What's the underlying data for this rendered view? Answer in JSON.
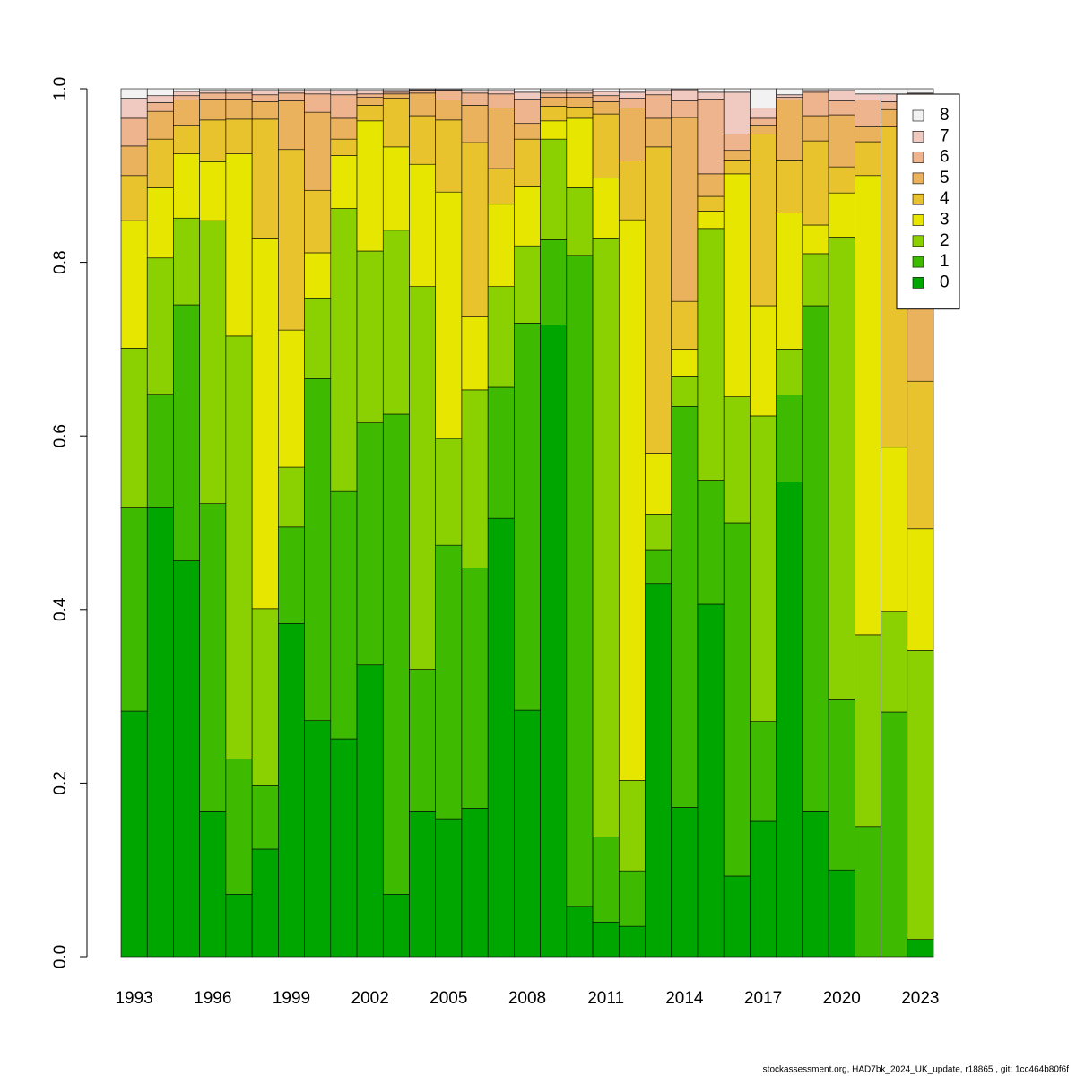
{
  "chart_data": {
    "type": "stacked-bar",
    "categories": [
      "1993",
      null,
      null,
      "1996",
      null,
      null,
      "1999",
      null,
      null,
      "2002",
      null,
      null,
      "2005",
      null,
      null,
      "2008",
      null,
      null,
      "2011",
      null,
      null,
      "2014",
      null,
      null,
      "2017",
      null,
      null,
      "2020",
      null,
      null,
      "2023"
    ],
    "series": [
      {
        "name": "0",
        "color": "#00A600",
        "values": [
          0.283,
          0.518,
          0.456,
          0.167,
          0.072,
          0.124,
          0.384,
          0.272,
          0.251,
          0.336,
          0.072,
          0.167,
          0.159,
          0.171,
          0.505,
          0.284,
          0.728,
          0.058,
          0.04,
          0.035,
          0.43,
          0.172,
          0.406,
          0.093,
          0.156,
          0.547,
          0.167,
          0.1,
          0,
          0,
          0.02
        ]
      },
      {
        "name": "1",
        "color": "#3EBB00",
        "values": [
          0.235,
          0.13,
          0.295,
          0.355,
          0.156,
          0.073,
          0.111,
          0.394,
          0.285,
          0.279,
          0.553,
          0.164,
          0.315,
          0.277,
          0.151,
          0.446,
          0.098,
          0.75,
          0.098,
          0.064,
          0.039,
          0.462,
          0.143,
          0.407,
          0.115,
          0.1,
          0.583,
          0.196,
          0.15,
          0.282,
          0
        ]
      },
      {
        "name": "2",
        "color": "#8BD000",
        "values": [
          0.183,
          0.157,
          0.1,
          0.326,
          0.487,
          0.204,
          0.069,
          0.093,
          0.326,
          0.198,
          0.212,
          0.441,
          0.123,
          0.205,
          0.116,
          0.089,
          0.116,
          0.078,
          0.69,
          0.104,
          0.041,
          0.035,
          0.29,
          0.145,
          0.352,
          0.053,
          0.06,
          0.533,
          0.221,
          0.116,
          0.333
        ]
      },
      {
        "name": "3",
        "color": "#E6E600",
        "values": [
          0.147,
          0.081,
          0.074,
          0.068,
          0.21,
          0.427,
          0.158,
          0.052,
          0.061,
          0.15,
          0.096,
          0.141,
          0.284,
          0.085,
          0.095,
          0.069,
          0.021,
          0.08,
          0.069,
          0.646,
          0.07,
          0.031,
          0.02,
          0.257,
          0.127,
          0.157,
          0.033,
          0.051,
          0.529,
          0.189,
          0.14
        ]
      },
      {
        "name": "4",
        "color": "#E8C32E",
        "values": [
          0.052,
          0.056,
          0.033,
          0.048,
          0.04,
          0.137,
          0.208,
          0.072,
          0.019,
          0.018,
          0.056,
          0.056,
          0.083,
          0.2,
          0.041,
          0.054,
          0.017,
          0.013,
          0.074,
          0.068,
          0.353,
          0.055,
          0.017,
          0.016,
          0.198,
          0.061,
          0.097,
          0.03,
          0.039,
          0.369,
          0.17
        ]
      },
      {
        "name": "5",
        "color": "#EBB25E",
        "values": [
          0.034,
          0.032,
          0.029,
          0.024,
          0.023,
          0.02,
          0.056,
          0.09,
          0.024,
          0.009,
          0.005,
          0.026,
          0.023,
          0.043,
          0.07,
          0.018,
          0.01,
          0.011,
          0.014,
          0.061,
          0.033,
          0.212,
          0.026,
          0.011,
          0.01,
          0.069,
          0.029,
          0.06,
          0.017,
          0.02,
          0.297
        ]
      },
      {
        "name": "6",
        "color": "#EDB48E",
        "values": [
          0.032,
          0.01,
          0.005,
          0.007,
          0.007,
          0.008,
          0.009,
          0.021,
          0.027,
          0.004,
          0.002,
          0.003,
          0.011,
          0.014,
          0.016,
          0.028,
          0.005,
          0.005,
          0.007,
          0.011,
          0.027,
          0.019,
          0.086,
          0.019,
          0.008,
          0.003,
          0.027,
          0.016,
          0.031,
          0.009,
          0.025
        ]
      },
      {
        "name": "7",
        "color": "#F0C9C0",
        "values": [
          0.023,
          0.008,
          0.005,
          0.003,
          0.003,
          0.005,
          0.003,
          0.004,
          0.005,
          0.004,
          0.002,
          0.001,
          0.001,
          0.003,
          0.004,
          0.008,
          0.003,
          0.003,
          0.005,
          0.007,
          0.005,
          0.013,
          0.008,
          0.048,
          0.012,
          0.003,
          0.002,
          0.012,
          0.007,
          0.009,
          0.01
        ]
      },
      {
        "name": "8",
        "color": "#F2F2F2",
        "values": [
          0.011,
          0.008,
          0.003,
          0.002,
          0.002,
          0.002,
          0.002,
          0.002,
          0.002,
          0.002,
          0.002,
          0.001,
          0.001,
          0.002,
          0.002,
          0.004,
          0.002,
          0.002,
          0.003,
          0.004,
          0.002,
          0.001,
          0.004,
          0.004,
          0.022,
          0.007,
          0.002,
          0.002,
          0.006,
          0.006,
          0.005
        ]
      }
    ],
    "ylim": [
      0,
      1
    ],
    "yticks": [
      {
        "value": 0,
        "label": "0.0"
      },
      0.2,
      0.4,
      0.6,
      0.8,
      {
        "value": 1,
        "label": "1.0"
      }
    ],
    "legend": "top-right",
    "footer": "stockassessment.org, HAD7bk_2024_UK_update, r18865 , git: 1cc464b80f6f"
  }
}
